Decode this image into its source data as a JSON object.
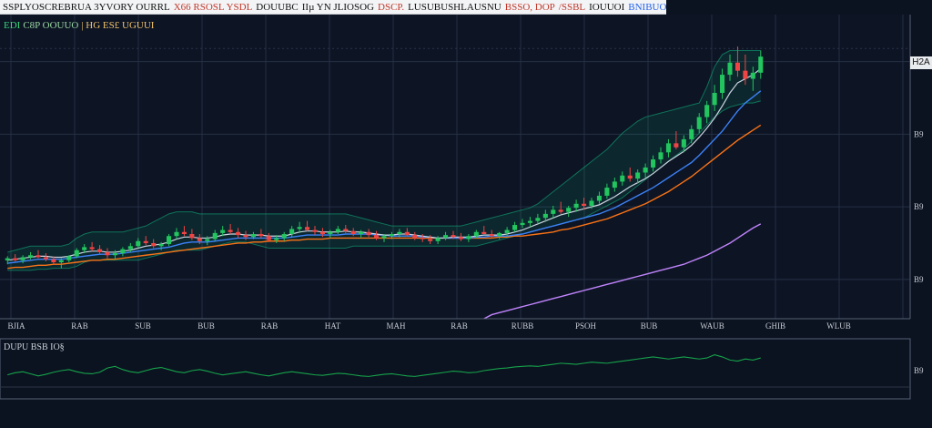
{
  "topbar": {
    "segments": [
      {
        "text": "SSPLYOSCREBRUA 3YVORY OURRL",
        "color": "#111111"
      },
      {
        "text": "X66 RSOSL YSDL",
        "color": "#c0392b"
      },
      {
        "text": "DOUUBC",
        "color": "#111111"
      },
      {
        "text": "IIµ YN JLIOSOG",
        "color": "#111111"
      },
      {
        "text": "DSCP.",
        "color": "#c0392b"
      },
      {
        "text": "LUSUBUSHLAUSNU",
        "color": "#111111"
      },
      {
        "text": "BSSO, DOP",
        "color": "#c0392b"
      },
      {
        "text": "/SSBL",
        "color": "#c0392b"
      },
      {
        "text": "IOUUOI",
        "color": "#111111"
      },
      {
        "text": "BNIBUOS",
        "color": "#2563eb"
      }
    ]
  },
  "legend": {
    "main_items": [
      {
        "text": "EDI",
        "color": "#37d67a"
      },
      {
        "text": "C8P OOUUO",
        "color": "#9ad7a3"
      },
      {
        "text": "| HG ES£ UGUUI",
        "color": "#f0c36b"
      }
    ],
    "indicator": "DUPU BSB IO§"
  },
  "price_axis": {
    "last_tag": "H2A",
    "ticks": [
      {
        "label": "B9",
        "value": 255
      },
      {
        "label": "B9",
        "value": 183
      },
      {
        "label": "B9",
        "value": 111
      },
      {
        "label": "B9",
        "value": 39
      }
    ]
  },
  "indicator_axis": {
    "ticks": [
      {
        "label": "B9",
        "value": 50
      }
    ]
  },
  "colors": {
    "up": "#22c55e",
    "down": "#ef4444",
    "ma_fast": "#cbd5e1",
    "ma_mid": "#3b82f6",
    "ma_slow": "#f97316",
    "ma_long": "#c084fc",
    "cloud": "#10b981",
    "indicator": "#16a34a"
  },
  "chart_data": {
    "type": "candlestick",
    "x_ticks": [
      "BJIA",
      "RAB",
      "SUB",
      "BUB",
      "RAB",
      "HAT",
      "MAH",
      "RAB",
      "RUBB",
      "PSOH",
      "BUB",
      "WAUB",
      "GHIB",
      "WLUB"
    ],
    "ylim": [
      0,
      280
    ],
    "candles": [
      [
        58,
        62,
        54,
        60
      ],
      [
        60,
        64,
        57,
        58
      ],
      [
        58,
        63,
        55,
        61
      ],
      [
        61,
        66,
        59,
        63
      ],
      [
        63,
        68,
        60,
        61
      ],
      [
        61,
        65,
        57,
        59
      ],
      [
        59,
        62,
        54,
        56
      ],
      [
        56,
        60,
        50,
        58
      ],
      [
        58,
        63,
        56,
        62
      ],
      [
        62,
        70,
        60,
        68
      ],
      [
        68,
        74,
        65,
        71
      ],
      [
        71,
        76,
        67,
        69
      ],
      [
        69,
        73,
        64,
        66
      ],
      [
        66,
        70,
        60,
        63
      ],
      [
        63,
        68,
        59,
        65
      ],
      [
        65,
        71,
        62,
        69
      ],
      [
        69,
        75,
        66,
        72
      ],
      [
        72,
        80,
        70,
        77
      ],
      [
        77,
        82,
        73,
        75
      ],
      [
        75,
        79,
        70,
        72
      ],
      [
        72,
        76,
        68,
        74
      ],
      [
        74,
        84,
        72,
        82
      ],
      [
        82,
        90,
        79,
        86
      ],
      [
        86,
        92,
        82,
        84
      ],
      [
        84,
        89,
        78,
        80
      ],
      [
        80,
        84,
        74,
        77
      ],
      [
        77,
        82,
        73,
        79
      ],
      [
        79,
        88,
        77,
        85
      ],
      [
        85,
        92,
        82,
        88
      ],
      [
        88,
        94,
        84,
        86
      ],
      [
        86,
        90,
        80,
        83
      ],
      [
        83,
        87,
        78,
        81
      ],
      [
        81,
        86,
        79,
        84
      ],
      [
        84,
        89,
        80,
        82
      ],
      [
        82,
        85,
        76,
        78
      ],
      [
        78,
        83,
        75,
        80
      ],
      [
        80,
        86,
        77,
        84
      ],
      [
        84,
        92,
        81,
        89
      ],
      [
        89,
        96,
        85,
        91
      ],
      [
        91,
        97,
        87,
        88
      ],
      [
        88,
        92,
        83,
        86
      ],
      [
        86,
        90,
        81,
        84
      ],
      [
        84,
        88,
        80,
        86
      ],
      [
        86,
        92,
        84,
        89
      ],
      [
        89,
        93,
        85,
        87
      ],
      [
        87,
        90,
        82,
        84
      ],
      [
        84,
        88,
        80,
        86
      ],
      [
        86,
        89,
        81,
        83
      ],
      [
        83,
        87,
        78,
        80
      ],
      [
        80,
        84,
        76,
        82
      ],
      [
        82,
        86,
        79,
        84
      ],
      [
        84,
        89,
        81,
        86
      ],
      [
        86,
        90,
        82,
        83
      ],
      [
        83,
        86,
        78,
        80
      ],
      [
        80,
        84,
        76,
        79
      ],
      [
        79,
        83,
        74,
        77
      ],
      [
        77,
        82,
        74,
        80
      ],
      [
        80,
        86,
        78,
        83
      ],
      [
        83,
        87,
        79,
        81
      ],
      [
        81,
        85,
        77,
        79
      ],
      [
        79,
        84,
        76,
        82
      ],
      [
        82,
        88,
        80,
        86
      ],
      [
        86,
        92,
        84,
        84
      ],
      [
        84,
        88,
        80,
        82
      ],
      [
        82,
        86,
        79,
        85
      ],
      [
        85,
        91,
        82,
        88
      ],
      [
        88,
        96,
        86,
        93
      ],
      [
        93,
        99,
        90,
        95
      ],
      [
        95,
        101,
        91,
        97
      ],
      [
        97,
        104,
        94,
        100
      ],
      [
        100,
        108,
        96,
        104
      ],
      [
        104,
        112,
        100,
        108
      ],
      [
        108,
        116,
        104,
        106
      ],
      [
        106,
        112,
        101,
        110
      ],
      [
        110,
        118,
        106,
        114
      ],
      [
        114,
        120,
        108,
        112
      ],
      [
        112,
        120,
        109,
        117
      ],
      [
        117,
        126,
        114,
        122
      ],
      [
        122,
        134,
        119,
        130
      ],
      [
        130,
        140,
        126,
        136
      ],
      [
        136,
        146,
        132,
        142
      ],
      [
        142,
        150,
        136,
        139
      ],
      [
        139,
        148,
        134,
        145
      ],
      [
        145,
        154,
        140,
        150
      ],
      [
        150,
        162,
        146,
        158
      ],
      [
        158,
        170,
        154,
        165
      ],
      [
        165,
        178,
        160,
        174
      ],
      [
        174,
        186,
        168,
        170
      ],
      [
        170,
        182,
        165,
        178
      ],
      [
        178,
        192,
        174,
        188
      ],
      [
        188,
        204,
        184,
        200
      ],
      [
        200,
        216,
        194,
        212
      ],
      [
        212,
        232,
        206,
        224
      ],
      [
        224,
        248,
        218,
        242
      ],
      [
        242,
        262,
        236,
        254
      ],
      [
        254,
        270,
        240,
        246
      ],
      [
        246,
        262,
        232,
        238
      ],
      [
        238,
        250,
        226,
        244
      ],
      [
        244,
        266,
        238,
        260
      ]
    ],
    "ma_fast": [
      58,
      59,
      60,
      61,
      62,
      62,
      61,
      61,
      62,
      64,
      66,
      67,
      67,
      66,
      66,
      67,
      68,
      70,
      72,
      73,
      74,
      76,
      79,
      81,
      81,
      80,
      80,
      81,
      83,
      84,
      84,
      83,
      83,
      83,
      82,
      82,
      82,
      84,
      86,
      87,
      87,
      86,
      86,
      86,
      87,
      86,
      86,
      85,
      84,
      83,
      83,
      84,
      84,
      83,
      82,
      81,
      80,
      80,
      81,
      81,
      81,
      82,
      83,
      83,
      83,
      84,
      86,
      88,
      91,
      94,
      97,
      100,
      103,
      105,
      107,
      109,
      111,
      113,
      117,
      121,
      126,
      131,
      135,
      139,
      144,
      150,
      156,
      161,
      166,
      172,
      180,
      189,
      199,
      211,
      224,
      234,
      238,
      242,
      248
    ],
    "ma_mid": [
      55,
      56,
      57,
      58,
      59,
      59,
      59,
      59,
      60,
      61,
      62,
      63,
      64,
      64,
      64,
      65,
      66,
      67,
      68,
      69,
      70,
      71,
      73,
      75,
      76,
      76,
      76,
      77,
      78,
      79,
      80,
      80,
      80,
      80,
      80,
      80,
      80,
      81,
      82,
      83,
      83,
      83,
      83,
      83,
      84,
      84,
      84,
      84,
      83,
      83,
      82,
      82,
      82,
      82,
      81,
      81,
      80,
      80,
      80,
      80,
      80,
      81,
      81,
      82,
      82,
      82,
      83,
      84,
      86,
      88,
      90,
      92,
      94,
      96,
      98,
      100,
      102,
      104,
      107,
      110,
      114,
      118,
      122,
      126,
      130,
      135,
      140,
      145,
      150,
      155,
      162,
      170,
      178,
      186,
      196,
      206,
      214,
      220,
      226
    ],
    "ma_slow": [
      50,
      51,
      51,
      52,
      53,
      53,
      54,
      54,
      55,
      56,
      57,
      58,
      58,
      59,
      59,
      60,
      61,
      62,
      63,
      64,
      65,
      66,
      67,
      68,
      69,
      70,
      71,
      72,
      73,
      74,
      75,
      75,
      76,
      76,
      77,
      77,
      77,
      78,
      78,
      79,
      79,
      79,
      80,
      80,
      80,
      80,
      80,
      80,
      80,
      80,
      80,
      80,
      80,
      80,
      80,
      80,
      80,
      80,
      80,
      80,
      80,
      80,
      80,
      80,
      81,
      81,
      82,
      82,
      83,
      84,
      85,
      86,
      88,
      89,
      91,
      93,
      95,
      97,
      99,
      102,
      105,
      108,
      111,
      114,
      118,
      122,
      126,
      131,
      136,
      141,
      147,
      153,
      159,
      165,
      171,
      177,
      182,
      187,
      192
    ],
    "ma_long": [
      [
        62,
        0
      ],
      [
        63,
        4
      ],
      [
        64,
        6
      ],
      [
        65,
        8
      ],
      [
        66,
        10
      ],
      [
        67,
        12
      ],
      [
        68,
        14
      ],
      [
        69,
        16
      ],
      [
        70,
        18
      ],
      [
        71,
        20
      ],
      [
        72,
        22
      ],
      [
        73,
        24
      ],
      [
        74,
        26
      ],
      [
        75,
        28
      ],
      [
        76,
        30
      ],
      [
        77,
        32
      ],
      [
        78,
        34
      ],
      [
        79,
        36
      ],
      [
        80,
        38
      ],
      [
        81,
        40
      ],
      [
        82,
        42
      ],
      [
        83,
        44
      ],
      [
        84,
        46
      ],
      [
        85,
        48
      ],
      [
        86,
        50
      ],
      [
        87,
        52
      ],
      [
        88,
        54
      ],
      [
        89,
        57
      ],
      [
        90,
        60
      ],
      [
        91,
        63
      ],
      [
        92,
        67
      ],
      [
        93,
        71
      ],
      [
        94,
        75
      ],
      [
        95,
        80
      ],
      [
        96,
        85
      ],
      [
        97,
        90
      ],
      [
        98,
        94
      ]
    ],
    "cloud_top": [
      66,
      68,
      70,
      72,
      72,
      72,
      72,
      72,
      74,
      80,
      84,
      86,
      86,
      86,
      86,
      86,
      88,
      90,
      92,
      96,
      100,
      104,
      106,
      106,
      106,
      104,
      104,
      104,
      104,
      104,
      104,
      104,
      104,
      104,
      104,
      104,
      104,
      104,
      104,
      104,
      104,
      104,
      104,
      104,
      104,
      102,
      100,
      98,
      96,
      94,
      92,
      92,
      92,
      92,
      92,
      92,
      92,
      92,
      92,
      92,
      94,
      96,
      98,
      100,
      102,
      104,
      106,
      108,
      110,
      114,
      120,
      126,
      132,
      138,
      144,
      150,
      156,
      162,
      168,
      176,
      184,
      190,
      196,
      200,
      202,
      204,
      206,
      208,
      210,
      212,
      214,
      230,
      250,
      262,
      266,
      266,
      266,
      266,
      266
    ],
    "cloud_bottom": [
      48,
      48,
      48,
      48,
      49,
      49,
      50,
      50,
      50,
      52,
      56,
      58,
      58,
      58,
      58,
      58,
      58,
      58,
      60,
      62,
      64,
      66,
      68,
      68,
      68,
      68,
      70,
      72,
      74,
      76,
      76,
      76,
      74,
      72,
      70,
      70,
      70,
      70,
      70,
      70,
      70,
      70,
      70,
      70,
      70,
      72,
      72,
      72,
      72,
      72,
      72,
      72,
      72,
      72,
      72,
      72,
      72,
      72,
      72,
      72,
      72,
      72,
      74,
      76,
      78,
      80,
      82,
      84,
      86,
      88,
      90,
      92,
      94,
      96,
      98,
      100,
      104,
      108,
      112,
      116,
      120,
      126,
      132,
      138,
      144,
      150,
      156,
      162,
      168,
      176,
      184,
      192,
      200,
      206,
      210,
      212,
      214,
      214,
      216
    ],
    "indicator": {
      "ylim": [
        0,
        100
      ],
      "values": [
        42,
        46,
        48,
        44,
        40,
        43,
        47,
        50,
        52,
        48,
        45,
        44,
        47,
        55,
        58,
        52,
        48,
        46,
        50,
        54,
        56,
        52,
        48,
        46,
        50,
        52,
        49,
        45,
        42,
        44,
        46,
        48,
        45,
        42,
        40,
        43,
        46,
        48,
        46,
        44,
        42,
        41,
        43,
        45,
        44,
        42,
        40,
        39,
        41,
        43,
        44,
        42,
        40,
        39,
        41,
        43,
        45,
        47,
        49,
        48,
        46,
        47,
        50,
        52,
        54,
        55,
        57,
        58,
        59,
        58,
        60,
        62,
        64,
        63,
        62,
        64,
        66,
        65,
        64,
        66,
        68,
        70,
        72,
        74,
        76,
        74,
        72,
        74,
        76,
        74,
        72,
        74,
        80,
        76,
        70,
        68,
        72,
        70,
        74
      ]
    }
  }
}
